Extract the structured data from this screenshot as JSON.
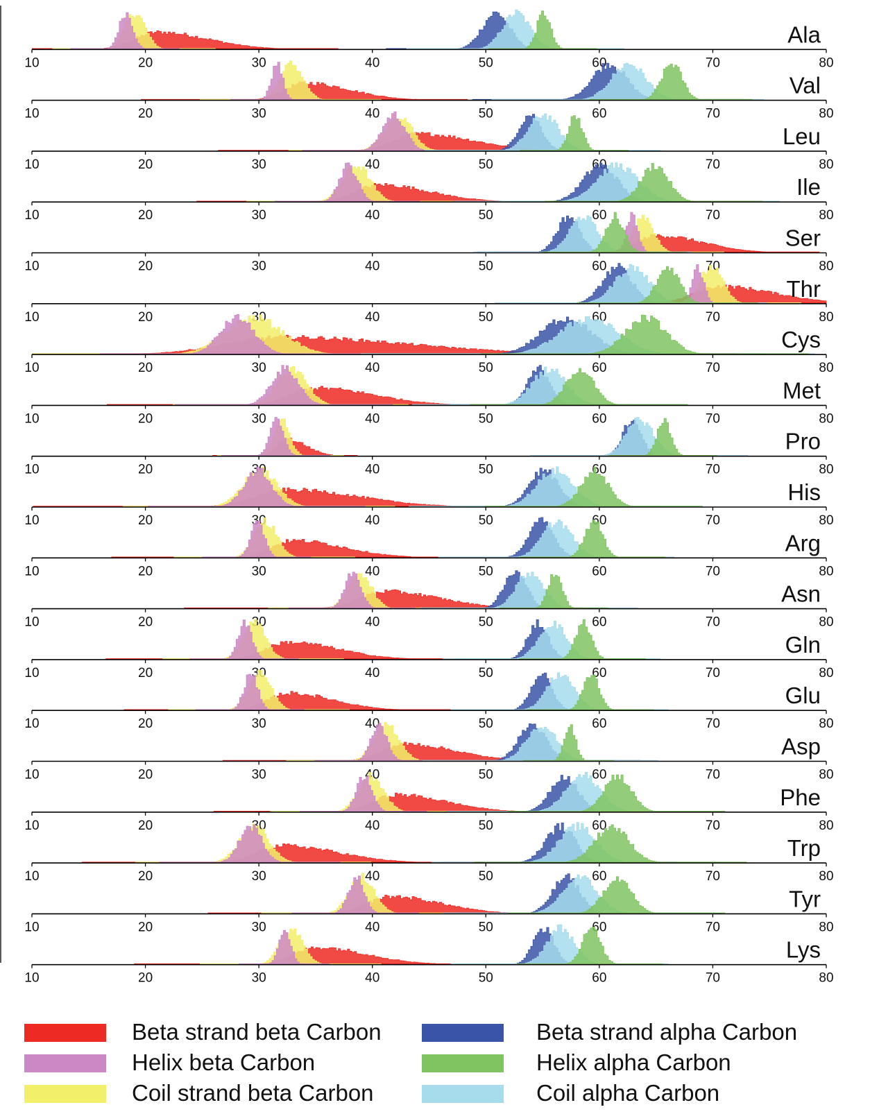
{
  "chart_data": {
    "type": "area",
    "title": "",
    "xlabel": "",
    "ylabel": "",
    "xlim": [
      10,
      80
    ],
    "xticks": [
      "10",
      "20",
      "30",
      "40",
      "50",
      "60",
      "70",
      "80"
    ],
    "grid": false,
    "legend_position": "bottom",
    "legend": [
      {
        "key": "beta_cb",
        "label": "Beta strand beta Carbon",
        "color": "#ee2a24"
      },
      {
        "key": "helix_cb",
        "label": "Helix beta Carbon",
        "color": "#cc88c4"
      },
      {
        "key": "coil_cb",
        "label": "Coil strand beta Carbon",
        "color": "#f2ef6a"
      },
      {
        "key": "beta_ca",
        "label": "Beta strand alpha Carbon",
        "color": "#3a55a8"
      },
      {
        "key": "helix_ca",
        "label": "Helix alpha Carbon",
        "color": "#80c462"
      },
      {
        "key": "coil_ca",
        "label": "Coil alpha Carbon",
        "color": "#a6dcec"
      }
    ],
    "panels": [
      {
        "residue": "Ala",
        "peaks": {
          "beta_cb": [
            21.0,
            2.0
          ],
          "helix_cb": [
            18.2,
            0.6
          ],
          "coil_cb": [
            19.0,
            0.9
          ],
          "beta_ca": [
            50.8,
            1.2
          ],
          "helix_ca": [
            55.0,
            0.6
          ],
          "coil_ca": [
            52.6,
            1.2
          ]
        }
      },
      {
        "residue": "Val",
        "peaks": {
          "beta_cb": [
            34.0,
            1.8
          ],
          "helix_cb": [
            31.5,
            0.5
          ],
          "coil_cb": [
            32.8,
            1.0
          ],
          "beta_ca": [
            60.8,
            1.5
          ],
          "helix_ca": [
            66.3,
            0.9
          ],
          "coil_ca": [
            62.5,
            1.5
          ]
        }
      },
      {
        "residue": "Leu",
        "peaks": {
          "beta_cb": [
            44.0,
            2.2
          ],
          "helix_cb": [
            41.8,
            1.0
          ],
          "coil_cb": [
            42.2,
            1.2
          ],
          "beta_ca": [
            53.8,
            1.0
          ],
          "helix_ca": [
            57.8,
            0.6
          ],
          "coil_ca": [
            55.0,
            1.3
          ]
        }
      },
      {
        "residue": "Ile",
        "peaks": {
          "beta_cb": [
            40.5,
            2.0
          ],
          "helix_cb": [
            37.8,
            0.8
          ],
          "coil_cb": [
            38.5,
            1.2
          ],
          "beta_ca": [
            60.0,
            1.5
          ],
          "helix_ca": [
            64.8,
            1.2
          ],
          "coil_ca": [
            61.5,
            1.8
          ]
        }
      },
      {
        "residue": "Ser",
        "peaks": {
          "beta_cb": [
            65.0,
            1.8
          ],
          "helix_cb": [
            62.8,
            0.5
          ],
          "coil_cb": [
            63.8,
            0.9
          ],
          "beta_ca": [
            57.2,
            1.0
          ],
          "helix_ca": [
            61.3,
            0.8
          ],
          "coil_ca": [
            58.5,
            1.2
          ]
        }
      },
      {
        "residue": "Thr",
        "peaks": {
          "beta_cb": [
            70.5,
            2.2
          ],
          "helix_cb": [
            68.6,
            0.5
          ],
          "coil_cb": [
            69.8,
            1.0
          ],
          "beta_ca": [
            61.5,
            1.3
          ],
          "helix_ca": [
            66.0,
            1.0
          ],
          "coil_ca": [
            62.8,
            1.5
          ]
        }
      },
      {
        "residue": "Cys",
        "peaks": {
          "beta_cb": [
            32.0,
            5.0
          ],
          "helix_cb": [
            28.0,
            1.5
          ],
          "coil_cb": [
            29.5,
            2.5
          ],
          "beta_ca": [
            57.0,
            2.2
          ],
          "helix_ca": [
            64.0,
            1.8
          ],
          "coil_ca": [
            59.0,
            2.5
          ]
        }
      },
      {
        "residue": "Met",
        "peaks": {
          "beta_cb": [
            35.0,
            2.3
          ],
          "helix_cb": [
            32.2,
            1.2
          ],
          "coil_cb": [
            32.8,
            1.3
          ],
          "beta_ca": [
            54.6,
            1.0
          ],
          "helix_ca": [
            58.2,
            1.2
          ],
          "coil_ca": [
            55.5,
            1.5
          ]
        }
      },
      {
        "residue": "Pro",
        "peaks": {
          "beta_cb": [
            32.3,
            0.8
          ],
          "helix_cb": [
            31.5,
            0.6
          ],
          "coil_cb": [
            31.9,
            0.7
          ],
          "beta_ca": [
            62.8,
            0.8
          ],
          "helix_ca": [
            65.6,
            0.6
          ],
          "coil_ca": [
            63.5,
            1.2
          ]
        }
      },
      {
        "residue": "His",
        "peaks": {
          "beta_cb": [
            32.5,
            2.8
          ],
          "helix_cb": [
            29.8,
            1.2
          ],
          "coil_cb": [
            30.0,
            1.5
          ],
          "beta_ca": [
            55.0,
            1.3
          ],
          "helix_ca": [
            59.5,
            1.2
          ],
          "coil_ca": [
            56.0,
            1.6
          ]
        }
      },
      {
        "residue": "Arg",
        "peaks": {
          "beta_cb": [
            33.0,
            2.0
          ],
          "helix_cb": [
            29.8,
            0.6
          ],
          "coil_cb": [
            30.5,
            1.0
          ],
          "beta_ca": [
            54.8,
            1.1
          ],
          "helix_ca": [
            59.4,
            0.8
          ],
          "coil_ca": [
            56.2,
            1.3
          ]
        }
      },
      {
        "residue": "Asn",
        "peaks": {
          "beta_cb": [
            41.0,
            2.2
          ],
          "helix_cb": [
            38.2,
            0.7
          ],
          "coil_cb": [
            38.8,
            1.0
          ],
          "beta_ca": [
            52.5,
            1.0
          ],
          "helix_ca": [
            56.0,
            0.6
          ],
          "coil_ca": [
            53.8,
            1.2
          ]
        }
      },
      {
        "residue": "Gln",
        "peaks": {
          "beta_cb": [
            32.5,
            2.0
          ],
          "helix_cb": [
            28.7,
            0.6
          ],
          "coil_cb": [
            29.5,
            1.0
          ],
          "beta_ca": [
            54.5,
            0.9
          ],
          "helix_ca": [
            58.5,
            0.7
          ],
          "coil_ca": [
            55.8,
            1.2
          ]
        }
      },
      {
        "residue": "Glu",
        "peaks": {
          "beta_cb": [
            32.5,
            1.8
          ],
          "helix_cb": [
            29.2,
            0.6
          ],
          "coil_cb": [
            30.0,
            1.0
          ],
          "beta_ca": [
            54.8,
            0.9
          ],
          "helix_ca": [
            59.2,
            0.7
          ],
          "coil_ca": [
            56.5,
            1.2
          ]
        }
      },
      {
        "residue": "Asp",
        "peaks": {
          "beta_cb": [
            42.8,
            2.0
          ],
          "helix_cb": [
            40.5,
            0.7
          ],
          "coil_cb": [
            41.2,
            1.1
          ],
          "beta_ca": [
            54.0,
            1.2
          ],
          "helix_ca": [
            57.3,
            0.5
          ],
          "coil_ca": [
            54.8,
            1.3
          ]
        }
      },
      {
        "residue": "Phe",
        "peaks": {
          "beta_cb": [
            42.0,
            2.0
          ],
          "helix_cb": [
            39.2,
            0.7
          ],
          "coil_cb": [
            39.8,
            1.1
          ],
          "beta_ca": [
            56.8,
            1.2
          ],
          "helix_ca": [
            61.5,
            1.2
          ],
          "coil_ca": [
            58.5,
            1.5
          ]
        }
      },
      {
        "residue": "Trp",
        "peaks": {
          "beta_cb": [
            32.0,
            2.2
          ],
          "helix_cb": [
            29.2,
            1.0
          ],
          "coil_cb": [
            29.5,
            1.3
          ],
          "beta_ca": [
            56.5,
            1.3
          ],
          "helix_ca": [
            61.0,
            1.5
          ],
          "coil_ca": [
            58.0,
            1.6
          ]
        }
      },
      {
        "residue": "Tyr",
        "peaks": {
          "beta_cb": [
            41.5,
            2.0
          ],
          "helix_cb": [
            38.5,
            0.7
          ],
          "coil_cb": [
            39.0,
            1.1
          ],
          "beta_ca": [
            57.0,
            1.2
          ],
          "helix_ca": [
            61.5,
            1.2
          ],
          "coil_ca": [
            58.2,
            1.5
          ]
        }
      },
      {
        "residue": "Lys",
        "peaks": {
          "beta_cb": [
            35.0,
            2.0
          ],
          "helix_cb": [
            32.2,
            0.5
          ],
          "coil_cb": [
            32.8,
            1.0
          ],
          "beta_ca": [
            55.0,
            0.9
          ],
          "helix_ca": [
            59.2,
            0.8
          ],
          "coil_ca": [
            56.5,
            1.2
          ]
        }
      }
    ]
  }
}
